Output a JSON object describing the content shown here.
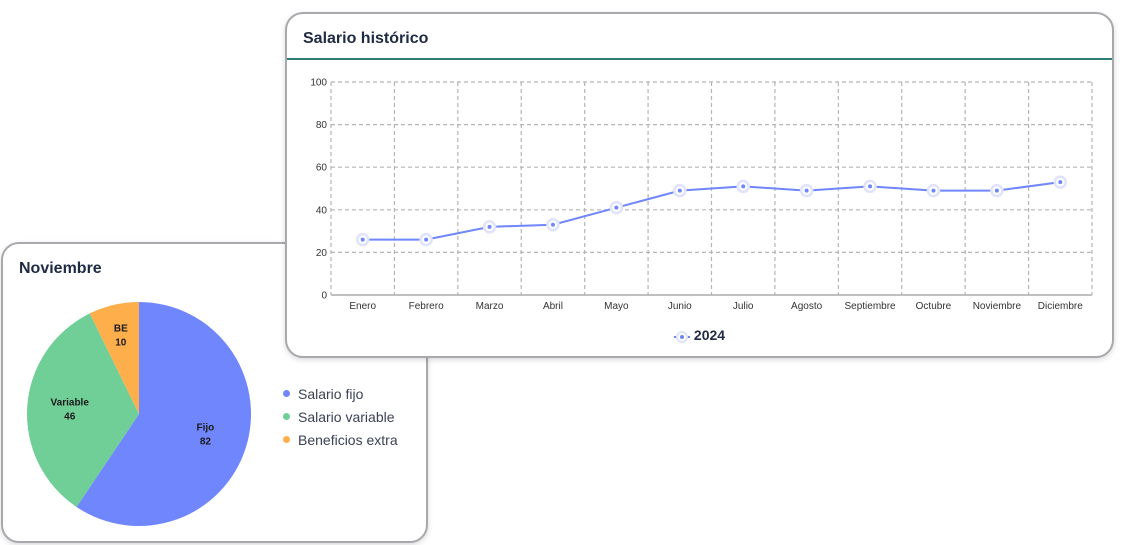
{
  "pie_card": {
    "title": "Noviembre",
    "legend": [
      {
        "label": "Salario fijo",
        "color": "#7086fd"
      },
      {
        "label": "Salario variable",
        "color": "#6fcf97"
      },
      {
        "label": "Beneficios extra",
        "color": "#ffae4c"
      }
    ]
  },
  "line_card": {
    "title": "Salario histórico"
  },
  "chart_data": [
    {
      "type": "pie",
      "title": "Noviembre",
      "slices": [
        {
          "label": "Fijo",
          "value": 82,
          "color": "#7086fd",
          "legend": "Salario fijo"
        },
        {
          "label": "Variable",
          "value": 46,
          "color": "#6fcf97",
          "legend": "Salario variable"
        },
        {
          "label": "BE",
          "value": 10,
          "color": "#ffae4c",
          "legend": "Beneficios extra"
        }
      ]
    },
    {
      "type": "line",
      "title": "Salario histórico",
      "categories": [
        "Enero",
        "Febrero",
        "Marzo",
        "Abril",
        "Mayo",
        "Junio",
        "Julio",
        "Agosto",
        "Septiembre",
        "Octubre",
        "Noviembre",
        "Diciembre"
      ],
      "series": [
        {
          "name": "2024",
          "color": "#7086fd",
          "values": [
            26,
            26,
            32,
            33,
            41,
            49,
            51,
            49,
            51,
            49,
            49,
            53
          ]
        }
      ],
      "ylim": [
        0,
        100
      ],
      "yticks": [
        0,
        20,
        40,
        60,
        80,
        100
      ],
      "grid": true,
      "legend_position": "bottom"
    }
  ]
}
